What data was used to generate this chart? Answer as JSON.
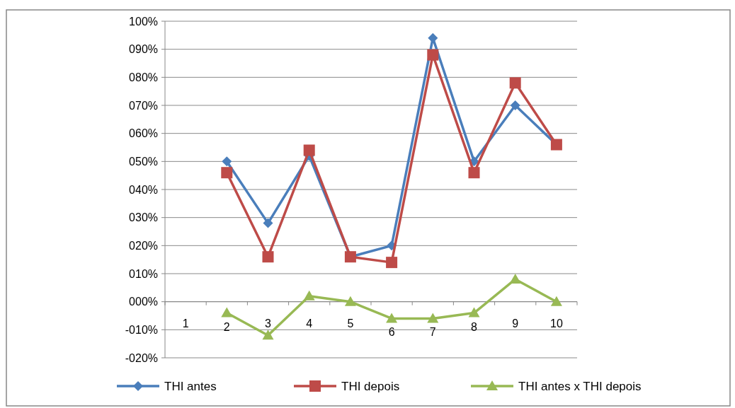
{
  "chart_data": {
    "type": "line",
    "categories": [
      "1",
      "2",
      "3",
      "4",
      "5",
      "6",
      "7",
      "8",
      "9",
      "10"
    ],
    "series": [
      {
        "name": "THI antes",
        "color": "#4a7ebb",
        "marker": "diamond",
        "values": [
          null,
          50,
          28,
          52,
          16,
          20,
          94,
          50,
          70,
          56
        ]
      },
      {
        "name": "THI depois",
        "color": "#be4b48",
        "marker": "square",
        "values": [
          null,
          46,
          16,
          54,
          16,
          14,
          88,
          46,
          78,
          56
        ]
      },
      {
        "name": "THI antes x THI depois",
        "color": "#98b954",
        "marker": "triangle",
        "values": [
          null,
          -4,
          -12,
          2,
          0,
          -6,
          -6,
          -4,
          8,
          0
        ]
      }
    ],
    "ylim": [
      -20,
      100
    ],
    "yticks": [
      {
        "value": -20,
        "label": "-020%"
      },
      {
        "value": -10,
        "label": "-010%"
      },
      {
        "value": 0,
        "label": "000%"
      },
      {
        "value": 10,
        "label": "010%"
      },
      {
        "value": 20,
        "label": "020%"
      },
      {
        "value": 30,
        "label": "030%"
      },
      {
        "value": 40,
        "label": "040%"
      },
      {
        "value": 50,
        "label": "050%"
      },
      {
        "value": 60,
        "label": "060%"
      },
      {
        "value": 70,
        "label": "070%"
      },
      {
        "value": 80,
        "label": "080%"
      },
      {
        "value": 90,
        "label": "090%"
      },
      {
        "value": 100,
        "label": "100%"
      }
    ],
    "grid": "y",
    "legend": "bottom",
    "line_style": "solid"
  }
}
